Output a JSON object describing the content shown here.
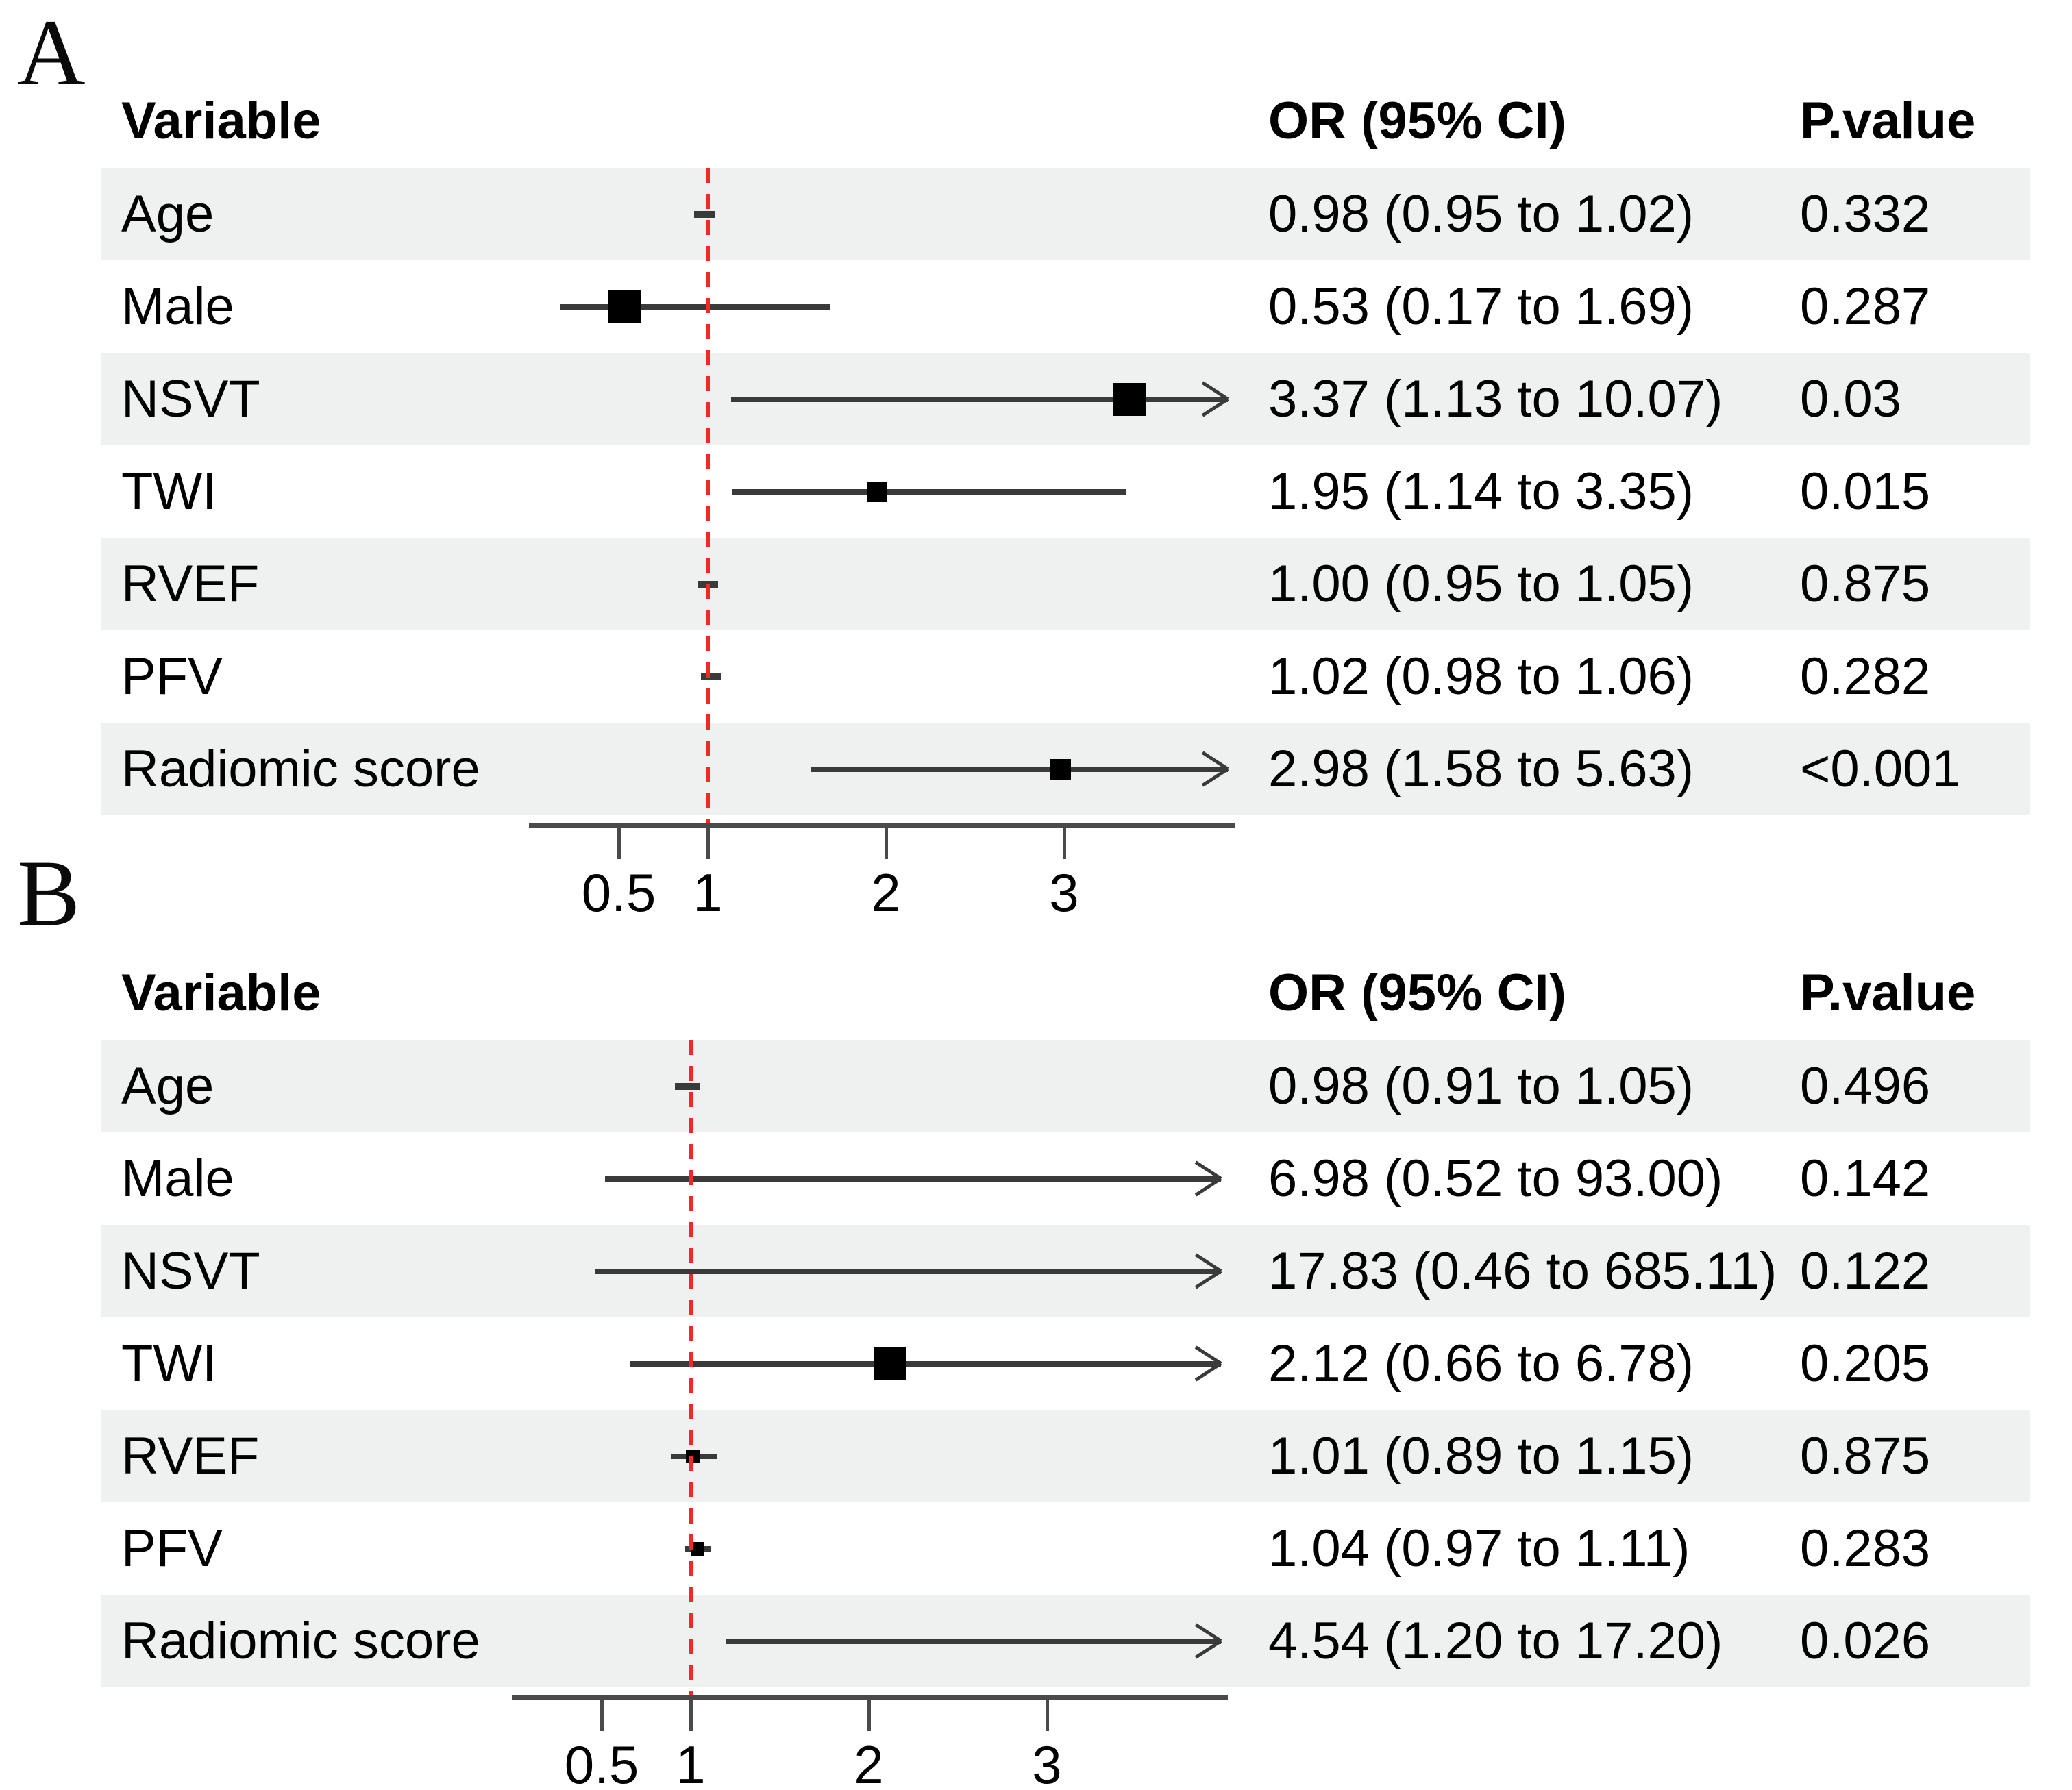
{
  "figure": {
    "panel_labels": [
      "A",
      "B"
    ],
    "colors": {
      "background": "#ffffff",
      "row_shade": "#eff1f0",
      "reference_line": "#ee2b23",
      "ci_line": "#3a3a3a",
      "marker": "#000000",
      "axis": "#4a4a4a",
      "text": "#000000"
    }
  },
  "chart_data": [
    {
      "type": "scatter",
      "subtype": "forest-plot",
      "panel": "A",
      "columns": {
        "variable": "Variable",
        "or": "OR (95% CI)",
        "p": "P.value"
      },
      "x_axis": {
        "scale": "linear",
        "min": 0,
        "max": 3.96,
        "ticks": [
          0.5,
          1,
          2,
          3
        ],
        "tick_labels": [
          "0.5",
          "1",
          "2",
          "3"
        ],
        "reference_line": 1,
        "grid": false
      },
      "rows": [
        {
          "variable": "Age",
          "est": 0.98,
          "lo": 0.95,
          "hi": 1.02,
          "hi_clipped": false,
          "marker": "dash",
          "or_text": "0.98 (0.95 to 1.02)",
          "p": "0.332"
        },
        {
          "variable": "Male",
          "est": 0.53,
          "lo": 0.17,
          "hi": 1.69,
          "hi_clipped": false,
          "marker": "large",
          "or_text": "0.53 (0.17 to 1.69)",
          "p": "0.287"
        },
        {
          "variable": "NSVT",
          "est": 3.37,
          "lo": 1.13,
          "hi": 10.07,
          "hi_clipped": true,
          "marker": "large",
          "or_text": "3.37 (1.13 to 10.07)",
          "p": "0.03"
        },
        {
          "variable": "TWI",
          "est": 1.95,
          "lo": 1.14,
          "hi": 3.35,
          "hi_clipped": false,
          "marker": "small",
          "or_text": "1.95 (1.14 to 3.35)",
          "p": "0.015"
        },
        {
          "variable": "RVEF",
          "est": 1.0,
          "lo": 0.95,
          "hi": 1.05,
          "hi_clipped": false,
          "marker": "dash",
          "or_text": "1.00 (0.95 to 1.05)",
          "p": "0.875"
        },
        {
          "variable": "PFV",
          "est": 1.02,
          "lo": 0.98,
          "hi": 1.06,
          "hi_clipped": false,
          "marker": "dash",
          "or_text": "1.02 (0.98 to 1.06)",
          "p": "0.282"
        },
        {
          "variable": "Radiomic score",
          "est": 2.98,
          "lo": 1.58,
          "hi": 5.63,
          "hi_clipped": true,
          "marker": "small",
          "or_text": "2.98 (1.58 to 5.63)",
          "p": "<0.001"
        }
      ]
    },
    {
      "type": "scatter",
      "subtype": "forest-plot",
      "panel": "B",
      "columns": {
        "variable": "Variable",
        "or": "OR (95% CI)",
        "p": "P.value"
      },
      "x_axis": {
        "scale": "linear",
        "min": 0,
        "max": 3.96,
        "ticks": [
          0.5,
          1,
          2,
          3
        ],
        "tick_labels": [
          "0.5",
          "1",
          "2",
          "3"
        ],
        "reference_line": 1,
        "grid": false
      },
      "rows": [
        {
          "variable": "Age",
          "est": 0.98,
          "lo": 0.91,
          "hi": 1.05,
          "hi_clipped": false,
          "marker": "dash",
          "or_text": "0.98 (0.91 to 1.05)",
          "p": "0.496"
        },
        {
          "variable": "Male",
          "est": 6.98,
          "lo": 0.52,
          "hi": 93.0,
          "hi_clipped": true,
          "marker": "none",
          "or_text": "6.98 (0.52 to 93.00)",
          "p": "0.142"
        },
        {
          "variable": "NSVT",
          "est": 17.83,
          "lo": 0.46,
          "hi": 685.11,
          "hi_clipped": true,
          "marker": "none",
          "or_text": "17.83 (0.46 to 685.11)",
          "p": "0.122"
        },
        {
          "variable": "TWI",
          "est": 2.12,
          "lo": 0.66,
          "hi": 6.78,
          "hi_clipped": true,
          "marker": "large",
          "or_text": "2.12 (0.66 to 6.78)",
          "p": "0.205"
        },
        {
          "variable": "RVEF",
          "est": 1.01,
          "lo": 0.89,
          "hi": 1.15,
          "hi_clipped": false,
          "marker": "tiny",
          "or_text": "1.01 (0.89 to 1.15)",
          "p": "0.875"
        },
        {
          "variable": "PFV",
          "est": 1.04,
          "lo": 0.97,
          "hi": 1.11,
          "hi_clipped": false,
          "marker": "tiny",
          "or_text": "1.04 (0.97 to 1.11)",
          "p": "0.283"
        },
        {
          "variable": "Radiomic score",
          "est": 4.54,
          "lo": 1.2,
          "hi": 17.2,
          "hi_clipped": true,
          "marker": "none",
          "or_text": "4.54 (1.20 to 17.20)",
          "p": "0.026"
        }
      ]
    }
  ]
}
